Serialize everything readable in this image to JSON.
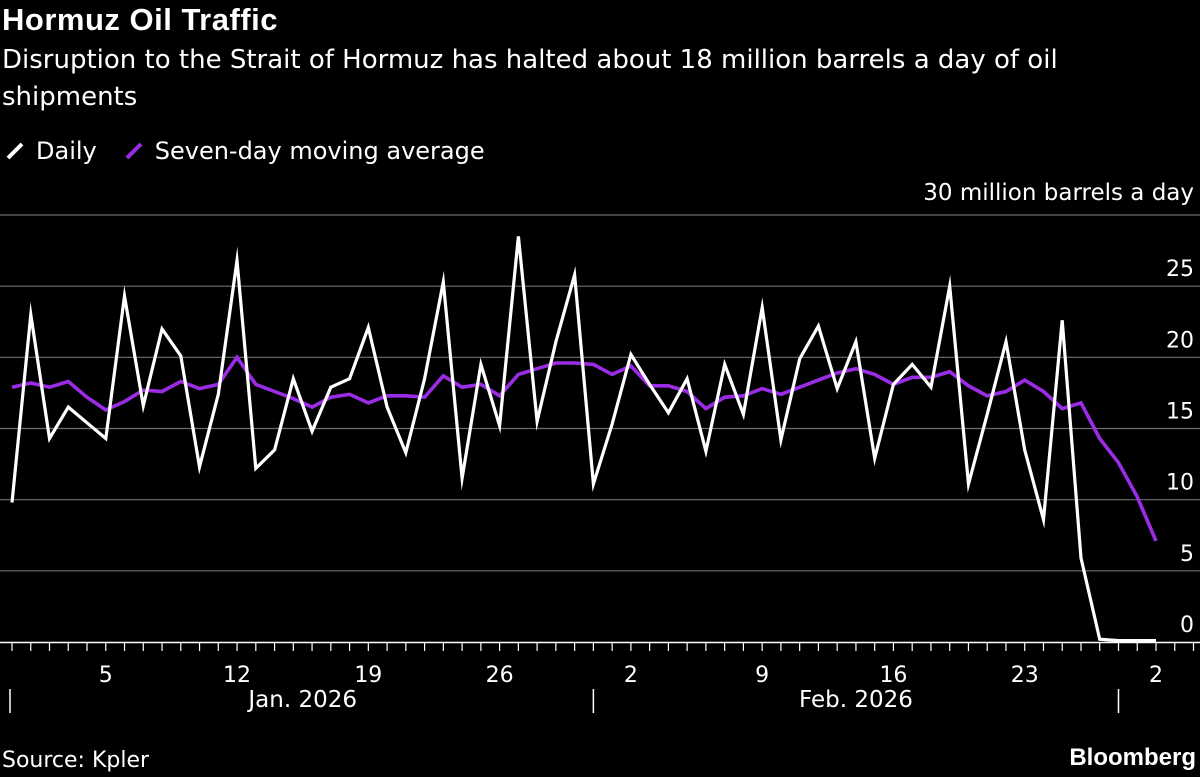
{
  "title": "Hormuz Oil Traffic",
  "subtitle": "Disruption to the Strait of Hormuz has halted about 18 million barrels a day of oil shipments",
  "legend": {
    "daily": "Daily",
    "moving_average": "Seven-day moving average"
  },
  "colors": {
    "background": "#000000",
    "daily": "#ffffff",
    "moving_average": "#9b2ce5",
    "grid": "#6e6e6e"
  },
  "unit_label": "30 million barrels a day",
  "source": "Source: Kpler",
  "brand": "Bloomberg",
  "chart_data": {
    "type": "line",
    "title": "Hormuz Oil Traffic",
    "ylabel": "30 million barrels a day",
    "ylim": [
      0,
      30
    ],
    "yticks": [
      "0",
      "5",
      "10",
      "15",
      "20",
      "25"
    ],
    "grid": true,
    "x_range": [
      0,
      81
    ],
    "xtick_labels": [
      {
        "x": 5,
        "label": "5"
      },
      {
        "x": 12,
        "label": "12"
      },
      {
        "x": 19,
        "label": "19"
      },
      {
        "x": 26,
        "label": "26"
      },
      {
        "x": 33,
        "label": "2"
      },
      {
        "x": 40,
        "label": "9"
      },
      {
        "x": 47,
        "label": "16"
      },
      {
        "x": 54,
        "label": "23"
      },
      {
        "x": 61,
        "label": "2"
      }
    ],
    "month_labels": [
      {
        "x": 15.5,
        "label": "Jan. 2026"
      },
      {
        "x": 45,
        "label": "Feb. 2026"
      }
    ],
    "month_separators": [
      0,
      31,
      59
    ],
    "series": [
      {
        "name": "Daily",
        "x": [
          0,
          1,
          2,
          3,
          4,
          5,
          6,
          7,
          8,
          9,
          10,
          11,
          12,
          13,
          14,
          15,
          16,
          17,
          18,
          19,
          20,
          21,
          22,
          23,
          24,
          25,
          26,
          27,
          28,
          29,
          30,
          31,
          32,
          33,
          34,
          35,
          36,
          37,
          38,
          39,
          40,
          41,
          42,
          43,
          44,
          45,
          46,
          47,
          48,
          49,
          50,
          51,
          52,
          53,
          54,
          55,
          56,
          57,
          58,
          59,
          60,
          61
        ],
        "values": [
          9.8,
          23.0,
          14.3,
          16.5,
          15.4,
          14.3,
          24.3,
          16.6,
          22.0,
          20.1,
          12.3,
          17.4,
          26.8,
          12.2,
          13.5,
          18.5,
          14.8,
          17.9,
          18.5,
          22.1,
          16.5,
          13.3,
          18.5,
          25.3,
          11.5,
          19.5,
          15.2,
          28.5,
          15.5,
          21.1,
          25.8,
          11.1,
          15.3,
          20.2,
          18.1,
          16.1,
          18.5,
          13.4,
          19.5,
          16.0,
          23.5,
          14.2,
          19.9,
          22.2,
          17.8,
          21.1,
          12.9,
          18.1,
          19.5,
          17.9,
          25.0,
          11.1,
          16.0,
          21.1,
          13.5,
          8.6,
          22.6,
          5.9,
          0.2,
          0.1,
          0.1,
          0.1
        ]
      },
      {
        "name": "Seven-day moving average",
        "x": [
          0,
          1,
          2,
          3,
          4,
          5,
          6,
          7,
          8,
          9,
          10,
          11,
          12,
          13,
          14,
          15,
          16,
          17,
          18,
          19,
          20,
          21,
          22,
          23,
          24,
          25,
          26,
          27,
          28,
          29,
          30,
          31,
          32,
          33,
          34,
          35,
          36,
          37,
          38,
          39,
          40,
          41,
          42,
          43,
          44,
          45,
          46,
          47,
          48,
          49,
          50,
          51,
          52,
          53,
          54,
          55,
          56,
          57,
          58,
          59,
          60,
          61
        ],
        "values": [
          17.9,
          18.2,
          17.9,
          18.3,
          17.2,
          16.3,
          16.9,
          17.7,
          17.6,
          18.3,
          17.8,
          18.1,
          20.0,
          18.1,
          17.6,
          17.1,
          16.5,
          17.2,
          17.4,
          16.8,
          17.3,
          17.3,
          17.2,
          18.7,
          17.9,
          18.1,
          17.3,
          18.8,
          19.2,
          19.6,
          19.6,
          19.5,
          18.8,
          19.4,
          18.0,
          18.0,
          17.6,
          16.4,
          17.2,
          17.3,
          17.8,
          17.4,
          17.9,
          18.4,
          18.9,
          19.2,
          18.8,
          18.1,
          18.6,
          18.6,
          19.0,
          18.0,
          17.3,
          17.6,
          18.4,
          17.6,
          16.4,
          16.8,
          14.3,
          12.6,
          10.2,
          7.1
        ]
      }
    ]
  }
}
